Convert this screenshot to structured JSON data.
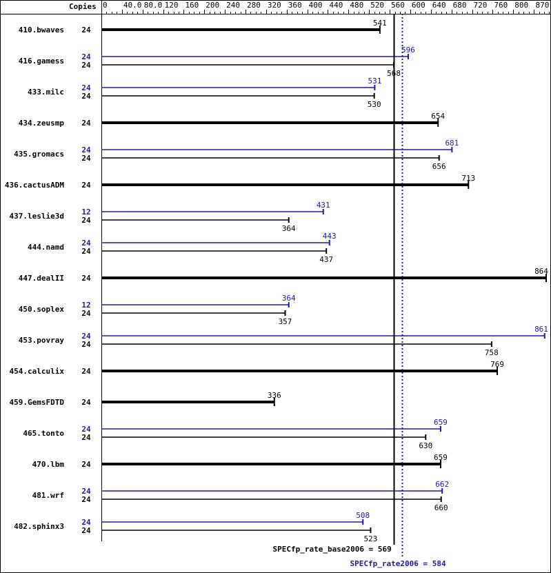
{
  "chart_data": {
    "type": "bar",
    "orientation": "horizontal",
    "header_label": "Copies",
    "xlim": [
      0,
      870
    ],
    "tick_labels": [
      "0",
      "40.0",
      "80.0",
      "120",
      "160",
      "200",
      "240",
      "280",
      "320",
      "360",
      "400",
      "440",
      "480",
      "520",
      "560",
      "600",
      "640",
      "680",
      "720",
      "760",
      "800",
      "870"
    ],
    "tick_values": [
      0,
      40,
      80,
      120,
      160,
      200,
      240,
      280,
      320,
      360,
      400,
      440,
      480,
      520,
      560,
      600,
      640,
      680,
      720,
      760,
      800,
      870
    ],
    "colors": {
      "base": "#000000",
      "peak": "#1a1aa6"
    },
    "benchmarks": [
      {
        "name": "410.bwaves",
        "base": 541,
        "base_copies": "24"
      },
      {
        "name": "416.gamess",
        "peak": 596,
        "peak_copies": "24",
        "base": 568,
        "base_copies": "24"
      },
      {
        "name": "433.milc",
        "peak": 531,
        "peak_copies": "24",
        "base": 530,
        "base_copies": "24"
      },
      {
        "name": "434.zeusmp",
        "base": 654,
        "base_copies": "24"
      },
      {
        "name": "435.gromacs",
        "peak": 681,
        "peak_copies": "24",
        "base": 656,
        "base_copies": "24"
      },
      {
        "name": "436.cactusADM",
        "base": 713,
        "base_copies": "24"
      },
      {
        "name": "437.leslie3d",
        "peak": 431,
        "peak_copies": "12",
        "base": 364,
        "base_copies": "24"
      },
      {
        "name": "444.namd",
        "peak": 443,
        "peak_copies": "24",
        "base": 437,
        "base_copies": "24"
      },
      {
        "name": "447.dealII",
        "base": 864,
        "base_copies": "24"
      },
      {
        "name": "450.soplex",
        "peak": 364,
        "peak_copies": "12",
        "base": 357,
        "base_copies": "24"
      },
      {
        "name": "453.povray",
        "peak": 861,
        "peak_copies": "24",
        "base": 758,
        "base_copies": "24"
      },
      {
        "name": "454.calculix",
        "base": 769,
        "base_copies": "24"
      },
      {
        "name": "459.GemsFDTD",
        "base": 336,
        "base_copies": "24"
      },
      {
        "name": "465.tonto",
        "peak": 659,
        "peak_copies": "24",
        "base": 630,
        "base_copies": "24"
      },
      {
        "name": "470.lbm",
        "base": 659,
        "base_copies": "24"
      },
      {
        "name": "481.wrf",
        "peak": 662,
        "peak_copies": "24",
        "base": 660,
        "base_copies": "24"
      },
      {
        "name": "482.sphinx3",
        "peak": 508,
        "peak_copies": "24",
        "base": 523,
        "base_copies": "24"
      }
    ],
    "summary": {
      "base_label": "SPECfp_rate_base2006 = 569",
      "base_value": 569,
      "peak_label": "SPECfp_rate2006 = 584",
      "peak_value": 584
    }
  }
}
